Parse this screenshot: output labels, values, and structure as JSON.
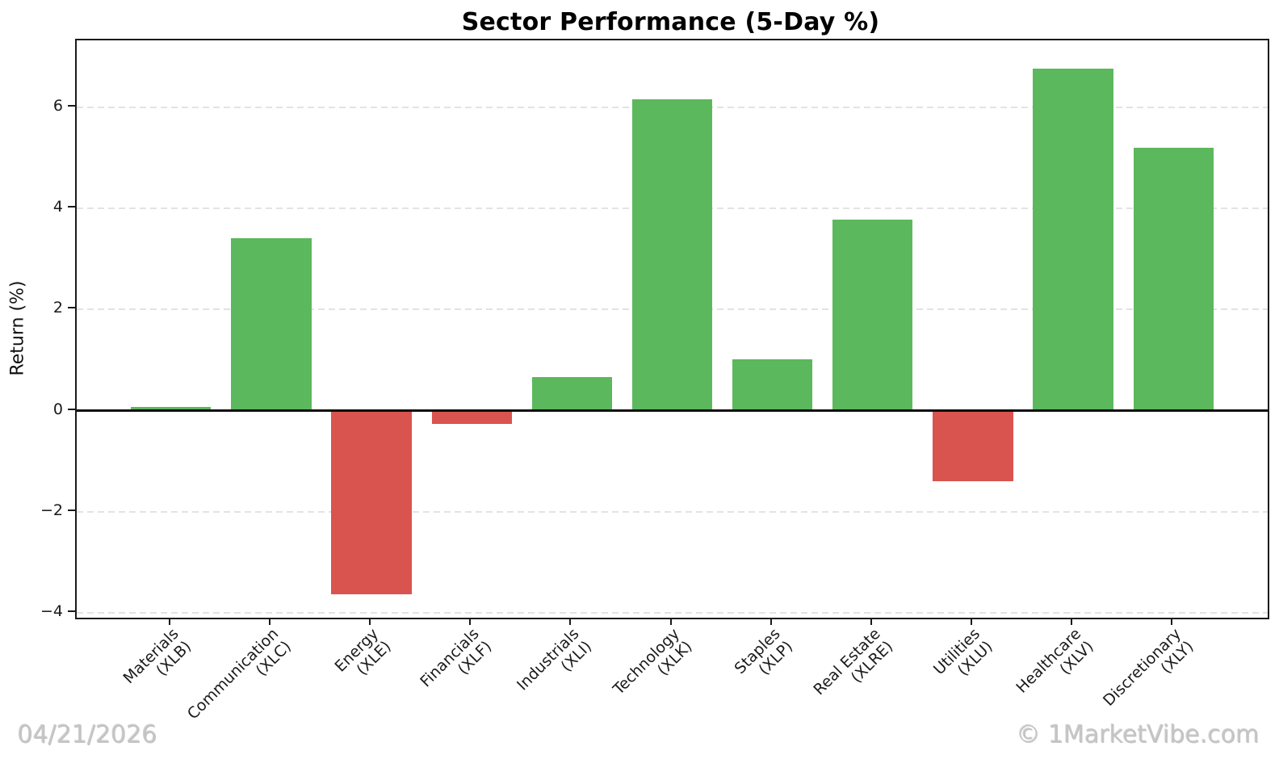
{
  "chart_data": {
    "type": "bar",
    "title": "Sector Performance (5-Day %)",
    "xlabel": "",
    "ylabel": "Return (%)",
    "categories": [
      {
        "name": "Materials",
        "ticker": "(XLB)"
      },
      {
        "name": "Communication",
        "ticker": "(XLC)"
      },
      {
        "name": "Energy",
        "ticker": "(XLE)"
      },
      {
        "name": "Financials",
        "ticker": "(XLF)"
      },
      {
        "name": "Industrials",
        "ticker": "(XLI)"
      },
      {
        "name": "Technology",
        "ticker": "(XLK)"
      },
      {
        "name": "Staples",
        "ticker": "(XLP)"
      },
      {
        "name": "Real Estate",
        "ticker": "(XLRE)"
      },
      {
        "name": "Utilities",
        "ticker": "(XLU)"
      },
      {
        "name": "Healthcare",
        "ticker": "(XLV)"
      },
      {
        "name": "Discretionary",
        "ticker": "(XLY)"
      }
    ],
    "values": [
      0.08,
      3.42,
      -3.63,
      -0.26,
      0.66,
      6.17,
      1.01,
      3.78,
      -1.4,
      6.77,
      5.2
    ],
    "yticks": [
      -4,
      -2,
      0,
      2,
      4,
      6
    ],
    "ytick_labels": [
      "−4",
      "−2",
      "0",
      "2",
      "4",
      "6"
    ],
    "ylim": [
      -4.1,
      7.33
    ],
    "xlim": [
      -0.94,
      10.94
    ],
    "bar_width": 0.8,
    "grid": "horizontal-dashed",
    "legend": "none",
    "positive_color": "#5cb85c",
    "negative_color": "#d9534f",
    "zero_line_color": "#0d0d0d"
  },
  "footer": {
    "date": "04/21/2026",
    "credit": "© 1MarketVibe.com"
  }
}
